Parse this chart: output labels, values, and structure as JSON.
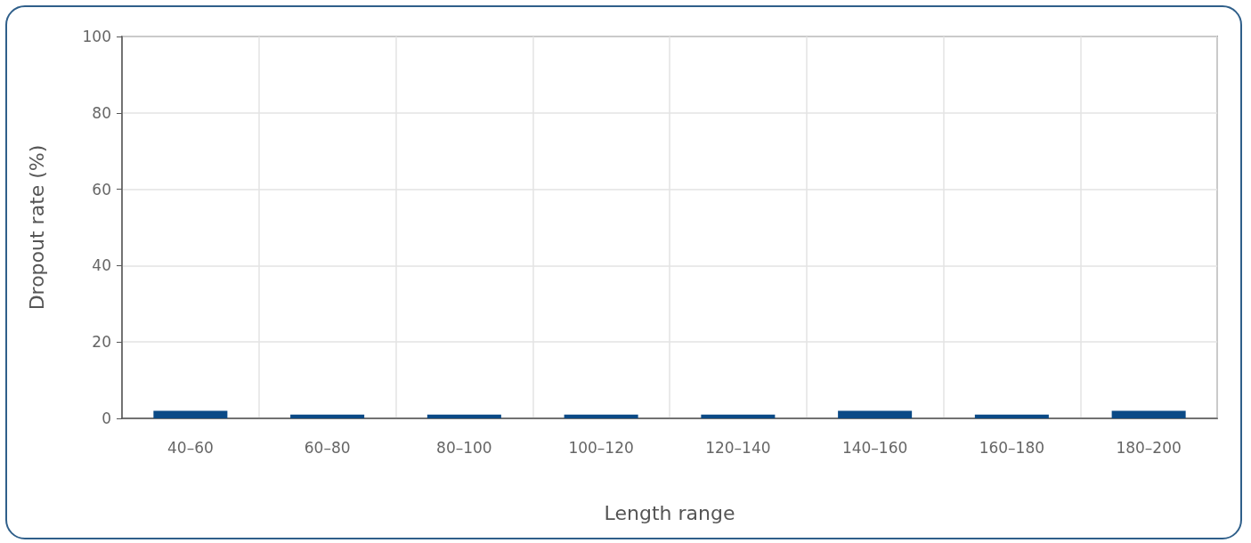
{
  "chart_data": {
    "type": "bar",
    "xlabel": "Length range",
    "ylabel": "Dropout rate (%)",
    "categories": [
      "40–60",
      "60–80",
      "80–100",
      "100–120",
      "120–140",
      "140–160",
      "160–180",
      "180–200"
    ],
    "values": [
      2,
      1,
      1,
      1,
      1,
      2,
      1,
      2
    ],
    "color": "#0b4a86",
    "ylim": [
      0,
      100
    ],
    "yticks": [
      0,
      20,
      40,
      60,
      80,
      100
    ],
    "grid": true
  }
}
